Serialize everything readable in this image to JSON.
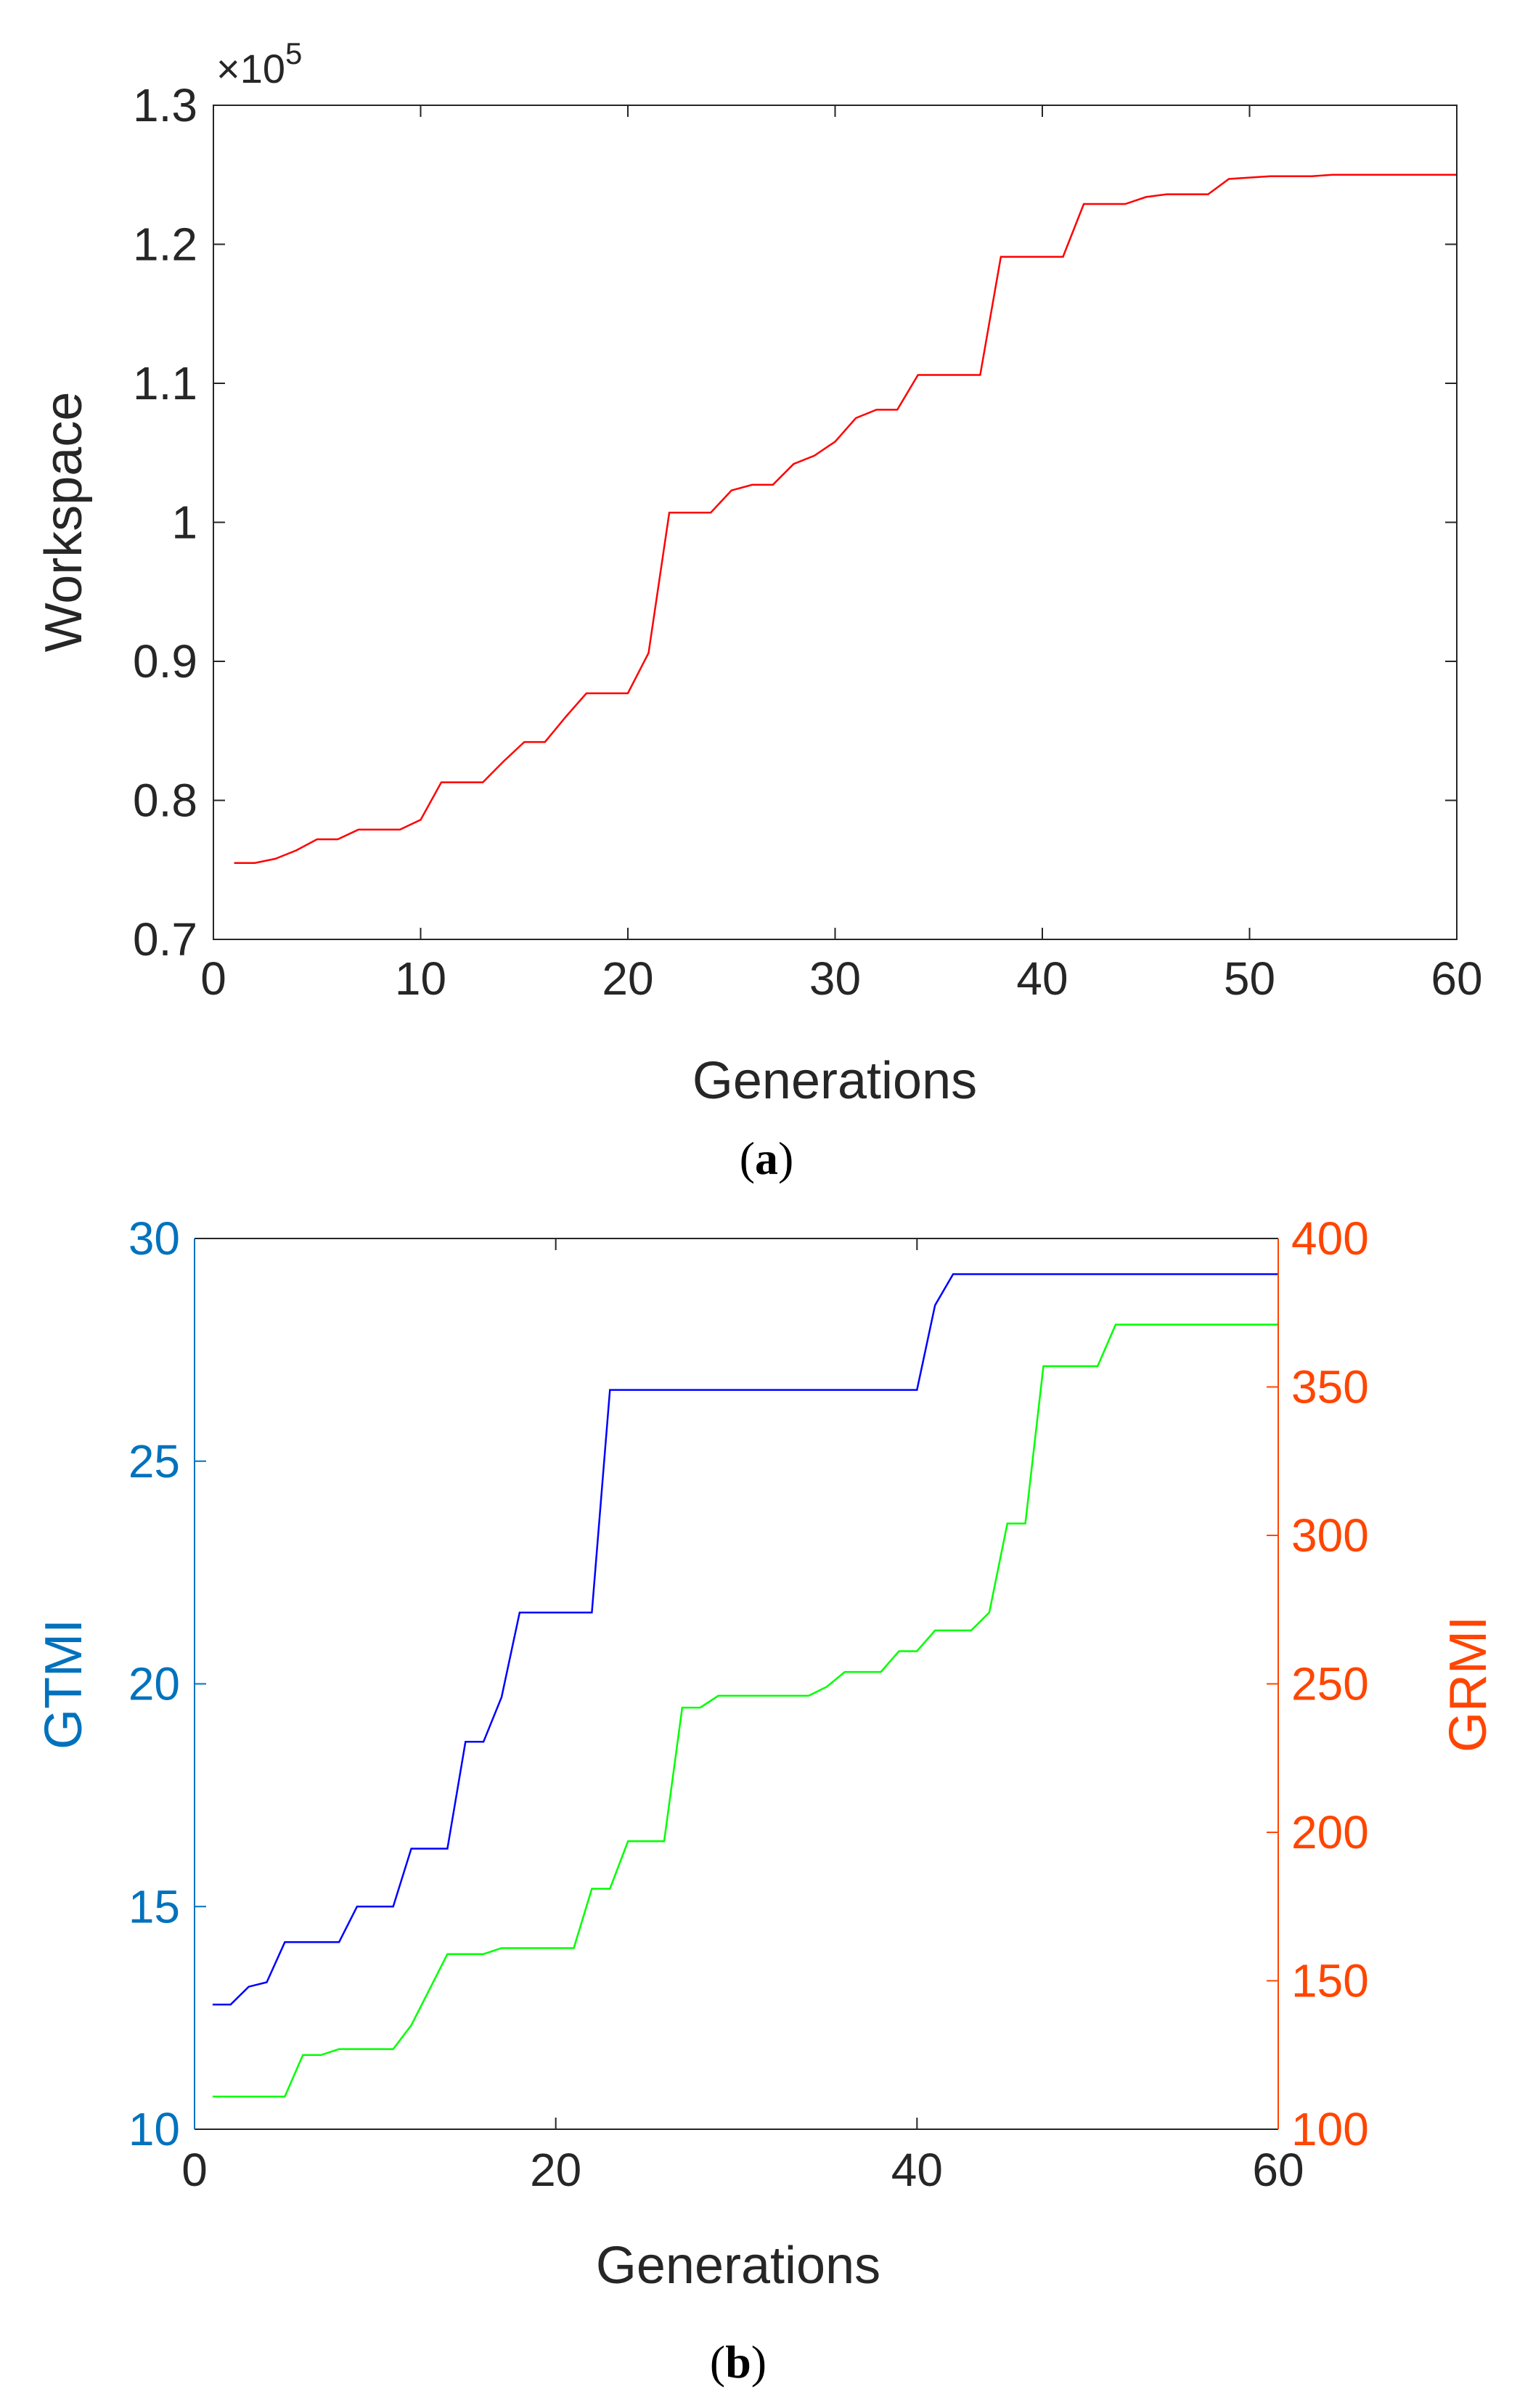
{
  "chart_data": [
    {
      "type": "line",
      "panel_label": "(a)",
      "panel_letter": "a",
      "xlabel": "Generations",
      "ylabel": "Workspace",
      "exponent_prefix": "×10",
      "exponent_power": "5",
      "xlim": [
        0,
        60
      ],
      "ylim": [
        0.7,
        1.3
      ],
      "xticks": [
        0,
        10,
        20,
        30,
        40,
        50,
        60
      ],
      "xtick_labels": [
        "0",
        "10",
        "20",
        "30",
        "40",
        "50",
        "60"
      ],
      "yticks": [
        0.7,
        0.8,
        0.9,
        1.0,
        1.1,
        1.2,
        1.3
      ],
      "ytick_labels": [
        "0.7",
        "0.8",
        "0.9",
        "1",
        "1.1",
        "1.2",
        "1.3"
      ],
      "series": [
        {
          "name": "Workspace",
          "color": "#ff0000",
          "x": [
            1,
            2,
            3,
            4,
            5,
            6,
            7,
            8,
            9,
            10,
            11,
            12,
            13,
            14,
            15,
            16,
            17,
            18,
            19,
            20,
            21,
            22,
            23,
            24,
            25,
            26,
            27,
            28,
            29,
            30,
            31,
            32,
            33,
            34,
            35,
            36,
            37,
            38,
            39,
            40,
            41,
            42,
            43,
            44,
            45,
            46,
            47,
            48,
            49,
            50,
            51,
            52,
            53,
            54,
            55,
            56,
            57,
            58,
            59,
            60
          ],
          "y": [
            0.755,
            0.755,
            0.758,
            0.764,
            0.772,
            0.772,
            0.779,
            0.779,
            0.779,
            0.786,
            0.813,
            0.813,
            0.813,
            0.828,
            0.842,
            0.842,
            0.86,
            0.877,
            0.877,
            0.877,
            0.906,
            1.007,
            1.007,
            1.007,
            1.023,
            1.027,
            1.027,
            1.042,
            1.048,
            1.058,
            1.075,
            1.081,
            1.081,
            1.106,
            1.106,
            1.106,
            1.106,
            1.191,
            1.191,
            1.191,
            1.191,
            1.229,
            1.229,
            1.229,
            1.234,
            1.236,
            1.236,
            1.236,
            1.247,
            1.248,
            1.249,
            1.249,
            1.249,
            1.25,
            1.25,
            1.25,
            1.25,
            1.25,
            1.25,
            1.25
          ]
        }
      ]
    },
    {
      "type": "line",
      "panel_label": "(b)",
      "panel_letter": "b",
      "xlabel": "Generations",
      "ylabel_left": "GTMI",
      "ylabel_right": "GRMI",
      "left_color": "#0072bd",
      "right_color": "#ff4500",
      "xlim": [
        0,
        60
      ],
      "ylim_left": [
        10,
        30
      ],
      "ylim_right": [
        100,
        400
      ],
      "xticks": [
        0,
        20,
        40,
        60
      ],
      "xtick_labels": [
        "0",
        "20",
        "40",
        "60"
      ],
      "yticks_left": [
        10,
        15,
        20,
        25,
        30
      ],
      "ytick_labels_left": [
        "10",
        "15",
        "20",
        "25",
        "30"
      ],
      "yticks_right": [
        100,
        150,
        200,
        250,
        300,
        350,
        400
      ],
      "ytick_labels_right": [
        "100",
        "150",
        "200",
        "250",
        "300",
        "350",
        "400"
      ],
      "series": [
        {
          "name": "GTMI",
          "axis": "left",
          "color": "#0000ff",
          "x": [
            1,
            2,
            3,
            4,
            5,
            6,
            7,
            8,
            9,
            10,
            11,
            12,
            13,
            14,
            15,
            16,
            17,
            18,
            19,
            20,
            21,
            22,
            23,
            24,
            25,
            26,
            27,
            28,
            29,
            30,
            31,
            32,
            33,
            34,
            35,
            36,
            37,
            38,
            39,
            40,
            41,
            42,
            43,
            44,
            45,
            46,
            47,
            48,
            49,
            50,
            51,
            52,
            53,
            54,
            55,
            56,
            57,
            58,
            59,
            60
          ],
          "y": [
            12.8,
            12.8,
            13.2,
            13.3,
            14.2,
            14.2,
            14.2,
            14.2,
            15.0,
            15.0,
            15.0,
            16.3,
            16.3,
            16.3,
            18.7,
            18.7,
            19.7,
            21.6,
            21.6,
            21.6,
            21.6,
            21.6,
            26.6,
            26.6,
            26.6,
            26.6,
            26.6,
            26.6,
            26.6,
            26.6,
            26.6,
            26.6,
            26.6,
            26.6,
            26.6,
            26.6,
            26.6,
            26.6,
            26.6,
            26.6,
            28.5,
            29.2,
            29.2,
            29.2,
            29.2,
            29.2,
            29.2,
            29.2,
            29.2,
            29.2,
            29.2,
            29.2,
            29.2,
            29.2,
            29.2,
            29.2,
            29.2,
            29.2,
            29.2,
            29.2
          ]
        },
        {
          "name": "GRMI",
          "axis": "right",
          "color": "#00ff00",
          "x": [
            1,
            2,
            3,
            4,
            5,
            6,
            7,
            8,
            9,
            10,
            11,
            12,
            13,
            14,
            15,
            16,
            17,
            18,
            19,
            20,
            21,
            22,
            23,
            24,
            25,
            26,
            27,
            28,
            29,
            30,
            31,
            32,
            33,
            34,
            35,
            36,
            37,
            38,
            39,
            40,
            41,
            42,
            43,
            44,
            45,
            46,
            47,
            48,
            49,
            50,
            51,
            52,
            53,
            54,
            55,
            56,
            57,
            58,
            59,
            60
          ],
          "y": [
            111,
            111,
            111,
            111,
            111,
            125,
            125,
            127,
            127,
            127,
            127,
            135,
            147,
            159,
            159,
            159,
            161,
            161,
            161,
            161,
            161,
            181,
            181,
            197,
            197,
            197,
            242,
            242,
            246,
            246,
            246,
            246,
            246,
            246,
            249,
            254,
            254,
            254,
            261,
            261,
            268,
            268,
            268,
            274,
            304,
            304,
            357,
            357,
            357,
            357,
            371,
            371,
            371,
            371,
            371,
            371,
            371,
            371,
            371,
            371
          ]
        }
      ]
    }
  ]
}
